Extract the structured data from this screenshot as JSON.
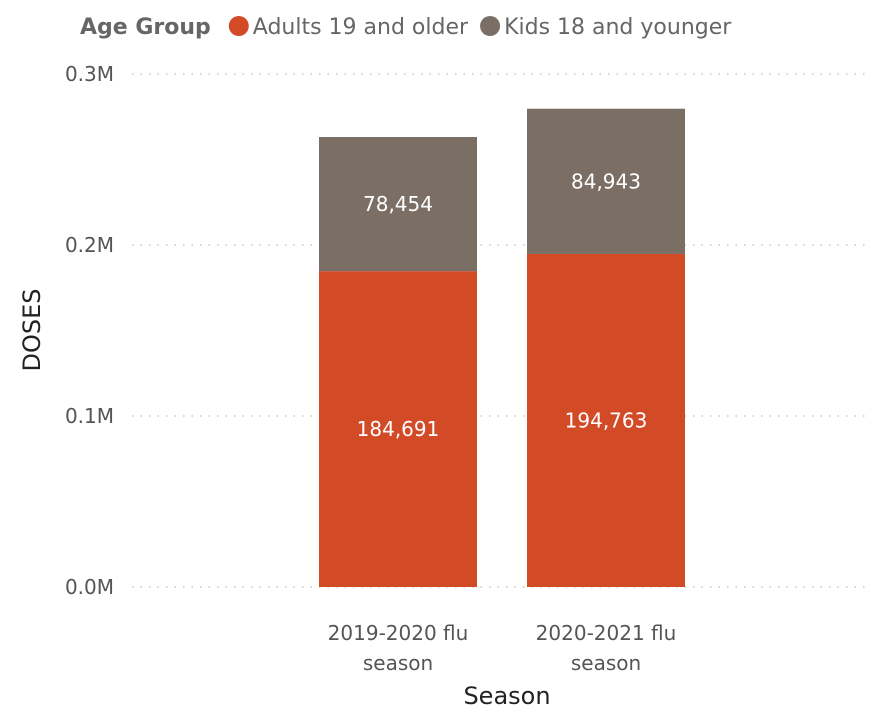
{
  "chart_data": {
    "type": "bar",
    "stacked": true,
    "categories": [
      [
        "2019-2020 flu",
        "season"
      ],
      [
        "2020-2021 flu",
        "season"
      ]
    ],
    "series": [
      {
        "name": "Adults 19 and older",
        "color": "#D34A27",
        "values": [
          184691,
          194763
        ],
        "labels": [
          "184,691",
          "194,763"
        ]
      },
      {
        "name": "Kids 18 and younger",
        "color": "#7A6E65",
        "values": [
          78454,
          84943
        ],
        "labels": [
          "78,454",
          "84,943"
        ]
      }
    ],
    "legend": {
      "title": "Age Group",
      "position": "top-left"
    },
    "xlabel": "Season",
    "ylabel": "DOSES",
    "ylim": [
      0,
      300000
    ],
    "yticks": [
      {
        "value": 0,
        "label": "0.0M"
      },
      {
        "value": 100000,
        "label": "0.1M"
      },
      {
        "value": 200000,
        "label": "0.2M"
      },
      {
        "value": 300000,
        "label": "0.3M"
      }
    ],
    "grid": true
  }
}
